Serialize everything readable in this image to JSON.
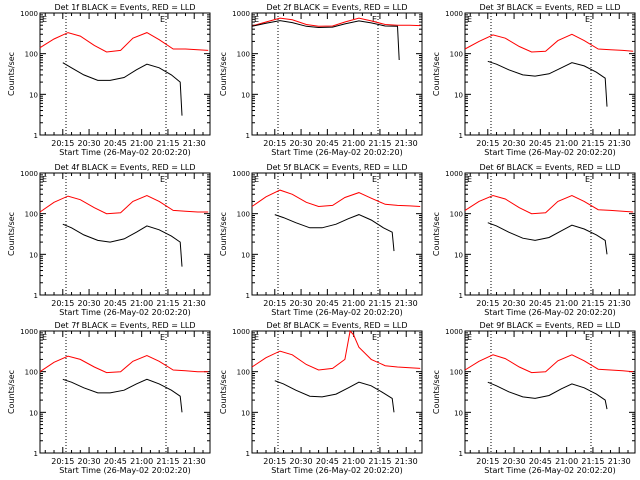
{
  "chart_data": [
    {
      "type": "line",
      "title": "Det 1f BLACK = Events, RED = LLD",
      "ylabel": "Counts/sec",
      "xlabel": "Start Time (26-May-02 20:02:20)",
      "x_ticks": [
        "20:15",
        "20:30",
        "20:45",
        "21:00",
        "21:15",
        "21:30"
      ],
      "y_ticks": [
        "1",
        "10",
        "100",
        "1000"
      ],
      "yscale": "log",
      "ylim": [
        1,
        1000
      ],
      "markers": [
        "E",
        "E"
      ],
      "series": [
        {
          "color": "#ff0000",
          "x": [
            "20:02",
            "20:10",
            "20:18",
            "20:25",
            "20:33",
            "20:40",
            "20:48",
            "20:55",
            "21:03",
            "21:10",
            "21:18",
            "21:25",
            "21:32",
            "21:38"
          ],
          "values": [
            140,
            230,
            330,
            270,
            160,
            110,
            120,
            240,
            330,
            220,
            130,
            130,
            125,
            120
          ]
        },
        {
          "color": "#000000",
          "x": [
            "20:15",
            "20:20",
            "20:27",
            "20:35",
            "20:42",
            "20:50",
            "20:57",
            "21:03",
            "21:10",
            "21:17",
            "21:22",
            "21:23"
          ],
          "values": [
            60,
            45,
            30,
            22,
            22,
            26,
            40,
            55,
            45,
            30,
            20,
            3
          ]
        }
      ]
    },
    {
      "type": "line",
      "title": "Det 2f BLACK = Events, RED = LLD",
      "ylabel": "Counts/sec",
      "xlabel": "Start Time (26-May-02 20:02:20)",
      "x_ticks": [
        "20:15",
        "20:30",
        "20:45",
        "21:00",
        "21:15",
        "21:30"
      ],
      "y_ticks": [
        "1",
        "10",
        "100",
        "1000"
      ],
      "yscale": "log",
      "ylim": [
        1,
        1000
      ],
      "markers": [
        "E",
        "E"
      ],
      "series": [
        {
          "color": "#ff0000",
          "x": [
            "20:02",
            "20:10",
            "20:18",
            "20:25",
            "20:33",
            "20:40",
            "20:48",
            "20:55",
            "21:03",
            "21:10",
            "21:18",
            "21:25",
            "21:32",
            "21:38"
          ],
          "values": [
            480,
            600,
            750,
            680,
            520,
            470,
            480,
            600,
            750,
            640,
            520,
            500,
            500,
            490
          ]
        },
        {
          "color": "#000000",
          "x": [
            "20:02",
            "20:10",
            "20:18",
            "20:25",
            "20:33",
            "20:40",
            "20:48",
            "20:55",
            "21:03",
            "21:10",
            "21:18",
            "21:25",
            "21:26"
          ],
          "values": [
            470,
            560,
            650,
            580,
            470,
            440,
            450,
            540,
            640,
            570,
            480,
            470,
            70
          ]
        }
      ]
    },
    {
      "type": "line",
      "title": "Det 3f BLACK = Events, RED = LLD",
      "ylabel": "Counts/sec",
      "xlabel": "Start Time (26-May-02 20:02:20)",
      "x_ticks": [
        "20:15",
        "20:30",
        "20:45",
        "21:00",
        "21:15",
        "21:30"
      ],
      "y_ticks": [
        "1",
        "10",
        "100",
        "1000"
      ],
      "yscale": "log",
      "ylim": [
        1,
        1000
      ],
      "markers": [
        "E",
        "E"
      ],
      "series": [
        {
          "color": "#ff0000",
          "x": [
            "20:02",
            "20:10",
            "20:18",
            "20:25",
            "20:33",
            "20:40",
            "20:48",
            "20:55",
            "21:03",
            "21:10",
            "21:18",
            "21:25",
            "21:32",
            "21:38"
          ],
          "values": [
            130,
            200,
            290,
            240,
            150,
            110,
            115,
            210,
            300,
            210,
            130,
            125,
            120,
            115
          ]
        },
        {
          "color": "#000000",
          "x": [
            "20:15",
            "20:20",
            "20:27",
            "20:35",
            "20:42",
            "20:50",
            "20:57",
            "21:03",
            "21:10",
            "21:17",
            "21:22",
            "21:23"
          ],
          "values": [
            65,
            55,
            40,
            30,
            28,
            32,
            45,
            60,
            50,
            35,
            25,
            5
          ]
        }
      ]
    },
    {
      "type": "line",
      "title": "Det 4f BLACK = Events, RED = LLD",
      "ylabel": "Counts/sec",
      "xlabel": "Start Time (26-May-02 20:02:20)",
      "x_ticks": [
        "20:15",
        "20:30",
        "20:45",
        "21:00",
        "21:15",
        "21:30"
      ],
      "y_ticks": [
        "1",
        "10",
        "100",
        "1000"
      ],
      "yscale": "log",
      "ylim": [
        1,
        1000
      ],
      "markers": [
        "E",
        "E"
      ],
      "series": [
        {
          "color": "#ff0000",
          "x": [
            "20:02",
            "20:10",
            "20:18",
            "20:25",
            "20:33",
            "20:40",
            "20:48",
            "20:55",
            "21:03",
            "21:10",
            "21:18",
            "21:25",
            "21:32",
            "21:38"
          ],
          "values": [
            110,
            190,
            270,
            220,
            140,
            100,
            105,
            200,
            280,
            200,
            120,
            115,
            110,
            110
          ]
        },
        {
          "color": "#000000",
          "x": [
            "20:15",
            "20:20",
            "20:27",
            "20:35",
            "20:42",
            "20:50",
            "20:57",
            "21:03",
            "21:10",
            "21:17",
            "21:22",
            "21:23"
          ],
          "values": [
            55,
            45,
            30,
            22,
            20,
            24,
            35,
            50,
            40,
            28,
            20,
            5
          ]
        }
      ]
    },
    {
      "type": "line",
      "title": "Det 5f BLACK = Events, RED = LLD",
      "ylabel": "Counts/sec",
      "xlabel": "Start Time (26-May-02 20:02:20)",
      "x_ticks": [
        "20:15",
        "20:30",
        "20:45",
        "21:00",
        "21:15",
        "21:30"
      ],
      "y_ticks": [
        "1",
        "10",
        "100",
        "1000"
      ],
      "yscale": "log",
      "ylim": [
        1,
        1000
      ],
      "markers": [
        "E",
        "E"
      ],
      "series": [
        {
          "color": "#ff0000",
          "x": [
            "20:02",
            "20:10",
            "20:18",
            "20:25",
            "20:33",
            "20:40",
            "20:48",
            "20:55",
            "21:03",
            "21:10",
            "21:18",
            "21:25",
            "21:32",
            "21:38"
          ],
          "values": [
            150,
            260,
            380,
            300,
            190,
            150,
            160,
            250,
            330,
            240,
            170,
            160,
            155,
            150
          ]
        },
        {
          "color": "#000000",
          "x": [
            "20:15",
            "20:20",
            "20:27",
            "20:35",
            "20:42",
            "20:50",
            "20:57",
            "21:03",
            "21:10",
            "21:17",
            "21:22",
            "21:23"
          ],
          "values": [
            95,
            80,
            60,
            45,
            45,
            55,
            75,
            95,
            70,
            45,
            35,
            12
          ]
        }
      ]
    },
    {
      "type": "line",
      "title": "Det 6f BLACK = Events, RED = LLD",
      "ylabel": "Counts/sec",
      "xlabel": "Start Time (26-May-02 20:02:20)",
      "x_ticks": [
        "20:15",
        "20:30",
        "20:45",
        "21:00",
        "21:15",
        "21:30"
      ],
      "y_ticks": [
        "1",
        "10",
        "100",
        "1000"
      ],
      "yscale": "log",
      "ylim": [
        1,
        1000
      ],
      "markers": [
        "E",
        "E"
      ],
      "series": [
        {
          "color": "#ff0000",
          "x": [
            "20:02",
            "20:10",
            "20:18",
            "20:25",
            "20:33",
            "20:40",
            "20:48",
            "20:55",
            "21:03",
            "21:10",
            "21:18",
            "21:25",
            "21:32",
            "21:38"
          ],
          "values": [
            120,
            200,
            280,
            230,
            140,
            100,
            105,
            200,
            280,
            200,
            125,
            120,
            115,
            110
          ]
        },
        {
          "color": "#000000",
          "x": [
            "20:15",
            "20:20",
            "20:27",
            "20:35",
            "20:42",
            "20:50",
            "20:57",
            "21:03",
            "21:10",
            "21:17",
            "21:22",
            "21:23"
          ],
          "values": [
            60,
            50,
            35,
            25,
            22,
            26,
            38,
            52,
            42,
            30,
            22,
            10
          ]
        }
      ]
    },
    {
      "type": "line",
      "title": "Det 7f BLACK = Events, RED = LLD",
      "ylabel": "Counts/sec",
      "xlabel": "Start Time (26-May-02 20:02:20)",
      "x_ticks": [
        "20:15",
        "20:30",
        "20:45",
        "21:00",
        "21:15",
        "21:30"
      ],
      "y_ticks": [
        "1",
        "10",
        "100",
        "1000"
      ],
      "yscale": "log",
      "ylim": [
        1,
        1000
      ],
      "markers": [
        "E",
        "E"
      ],
      "series": [
        {
          "color": "#ff0000",
          "x": [
            "20:02",
            "20:10",
            "20:18",
            "20:25",
            "20:33",
            "20:40",
            "20:48",
            "20:55",
            "21:03",
            "21:10",
            "21:18",
            "21:25",
            "21:32",
            "21:38"
          ],
          "values": [
            100,
            170,
            240,
            200,
            130,
            95,
            100,
            180,
            250,
            180,
            110,
            105,
            100,
            100
          ]
        },
        {
          "color": "#000000",
          "x": [
            "20:15",
            "20:20",
            "20:27",
            "20:35",
            "20:42",
            "20:50",
            "20:57",
            "21:03",
            "21:10",
            "21:17",
            "21:22",
            "21:23"
          ],
          "values": [
            65,
            55,
            40,
            30,
            30,
            35,
            50,
            65,
            50,
            35,
            25,
            10
          ]
        }
      ]
    },
    {
      "type": "line",
      "title": "Det 8f BLACK = Events, RED = LLD",
      "ylabel": "Counts/sec",
      "xlabel": "Start Time (26-May-02 20:02:20)",
      "x_ticks": [
        "20:15",
        "20:30",
        "20:45",
        "21:00",
        "21:15",
        "21:30"
      ],
      "y_ticks": [
        "1",
        "10",
        "100",
        "1000"
      ],
      "yscale": "log",
      "ylim": [
        1,
        1000
      ],
      "markers": [
        "E",
        "E"
      ],
      "series": [
        {
          "color": "#ff0000",
          "x": [
            "20:02",
            "20:10",
            "20:18",
            "20:25",
            "20:33",
            "20:40",
            "20:48",
            "20:55",
            "20:58",
            "21:00",
            "21:03",
            "21:10",
            "21:18",
            "21:25",
            "21:32",
            "21:38"
          ],
          "values": [
            130,
            220,
            320,
            260,
            150,
            110,
            120,
            200,
            1000,
            800,
            400,
            200,
            140,
            130,
            125,
            120
          ]
        },
        {
          "color": "#000000",
          "x": [
            "20:15",
            "20:20",
            "20:27",
            "20:35",
            "20:42",
            "20:50",
            "20:57",
            "21:03",
            "21:10",
            "21:17",
            "21:22",
            "21:23"
          ],
          "values": [
            60,
            50,
            35,
            25,
            24,
            28,
            40,
            55,
            45,
            30,
            22,
            10
          ]
        }
      ]
    },
    {
      "type": "line",
      "title": "Det 9f BLACK = Events, RED = LLD",
      "ylabel": "Counts/sec",
      "xlabel": "Start Time (26-May-02 20:02:20)",
      "x_ticks": [
        "20:15",
        "20:30",
        "20:45",
        "21:00",
        "21:15",
        "21:30"
      ],
      "y_ticks": [
        "1",
        "10",
        "100",
        "1000"
      ],
      "yscale": "log",
      "ylim": [
        1,
        1000
      ],
      "markers": [
        "E",
        "E"
      ],
      "series": [
        {
          "color": "#ff0000",
          "x": [
            "20:02",
            "20:10",
            "20:18",
            "20:25",
            "20:33",
            "20:40",
            "20:48",
            "20:55",
            "21:03",
            "21:10",
            "21:18",
            "21:25",
            "21:32",
            "21:38"
          ],
          "values": [
            110,
            180,
            260,
            210,
            130,
            95,
            100,
            185,
            260,
            185,
            115,
            110,
            105,
            100
          ]
        },
        {
          "color": "#000000",
          "x": [
            "20:15",
            "20:20",
            "20:27",
            "20:35",
            "20:42",
            "20:50",
            "20:57",
            "21:03",
            "21:10",
            "21:17",
            "21:22",
            "21:23"
          ],
          "values": [
            55,
            45,
            32,
            24,
            22,
            26,
            38,
            50,
            40,
            28,
            20,
            12
          ]
        }
      ]
    }
  ]
}
